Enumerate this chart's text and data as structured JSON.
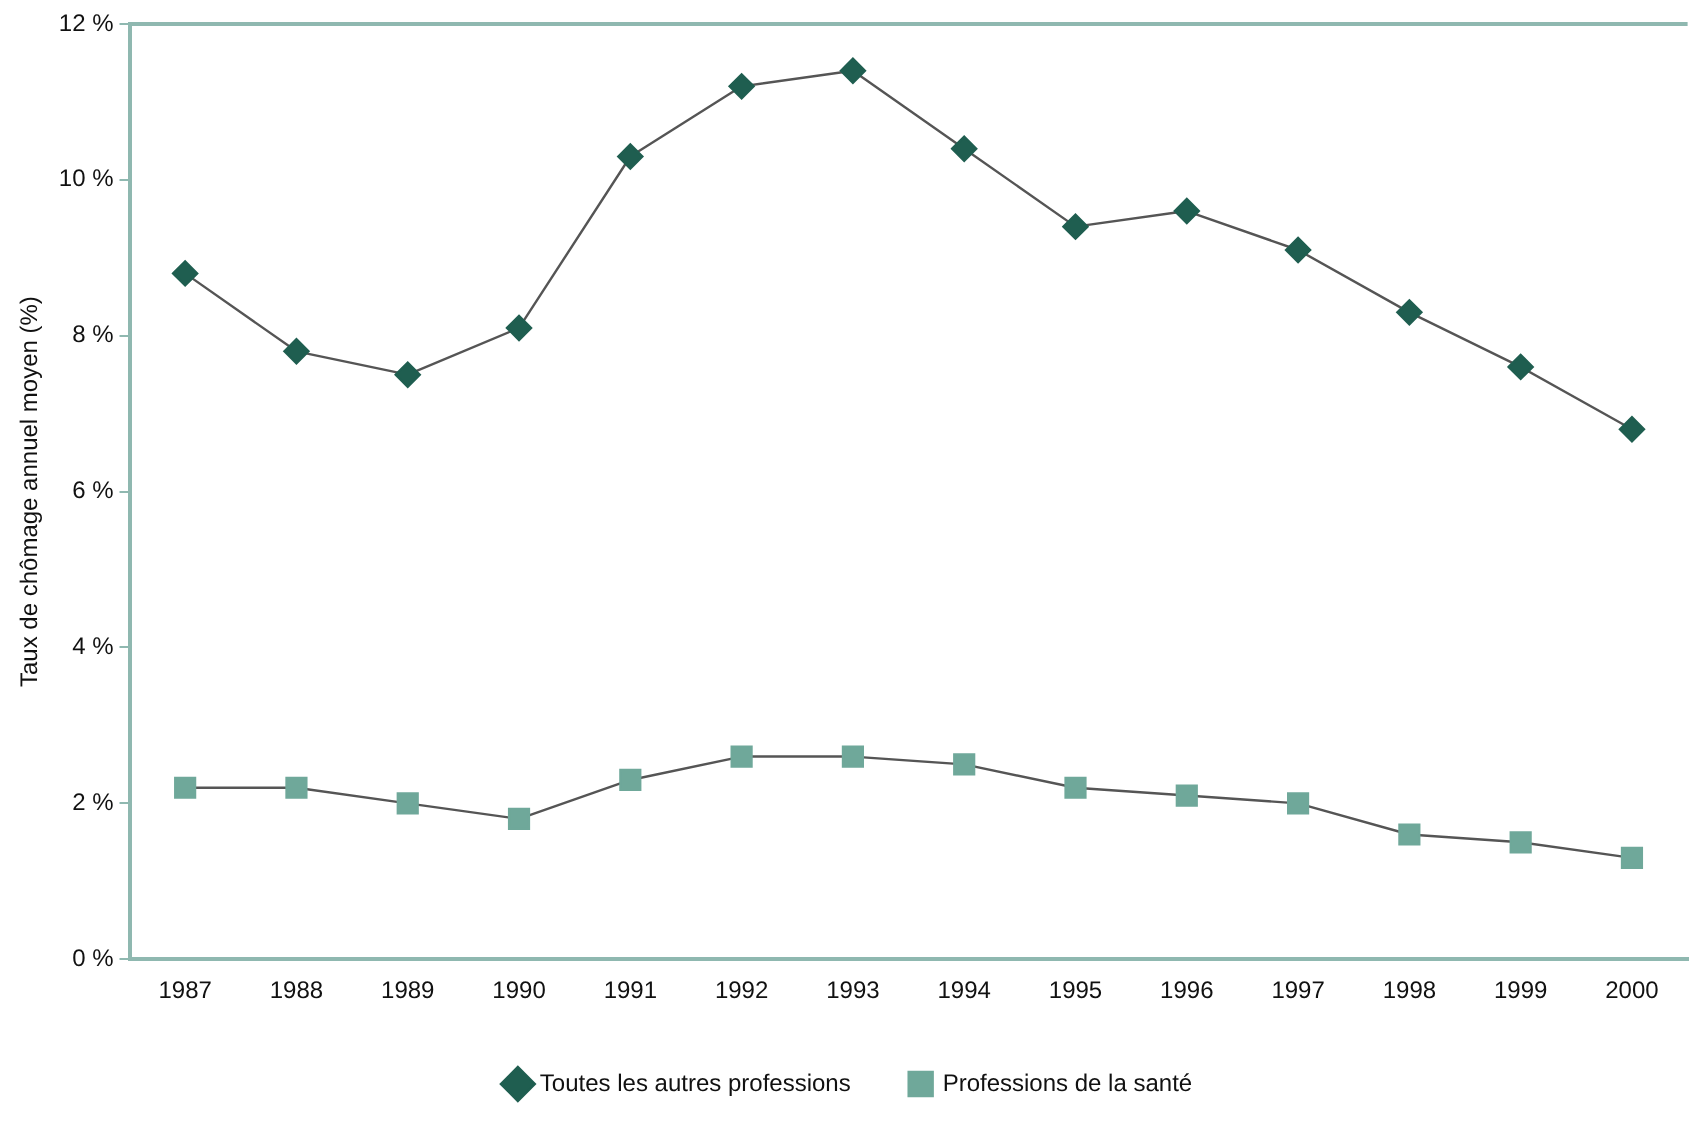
{
  "chart_data": {
    "type": "line",
    "ylabel": "Taux de chômage annuel moyen (%)",
    "categories": [
      "1987",
      "1988",
      "1989",
      "1990",
      "1991",
      "1992",
      "1993",
      "1994",
      "1995",
      "1996",
      "1997",
      "1998",
      "1999",
      "2000"
    ],
    "series": [
      {
        "name": "Toutes les autres professions",
        "color": "#1f5e50",
        "marker": "diamond",
        "values": [
          8.8,
          7.8,
          7.5,
          8.1,
          10.3,
          11.2,
          11.4,
          10.4,
          9.4,
          9.6,
          9.1,
          8.3,
          7.6,
          6.8
        ]
      },
      {
        "name": "Professions de la santé",
        "color": "#6fa89a",
        "marker": "square",
        "values": [
          2.2,
          2.2,
          2.0,
          1.8,
          2.3,
          2.6,
          2.6,
          2.5,
          2.2,
          2.1,
          2.0,
          1.6,
          1.5,
          1.3
        ]
      }
    ],
    "ylim": [
      0,
      12
    ],
    "yticks": [
      {
        "value": 0,
        "label": "0 %"
      },
      {
        "value": 2,
        "label": "2 %"
      },
      {
        "value": 4,
        "label": "4 %"
      },
      {
        "value": 6,
        "label": "6 %"
      },
      {
        "value": 8,
        "label": "8 %"
      },
      {
        "value": 10,
        "label": "10 %"
      },
      {
        "value": 12,
        "label": "12 %"
      }
    ],
    "grid": false,
    "legend": "bottom",
    "line_style": "solid"
  }
}
